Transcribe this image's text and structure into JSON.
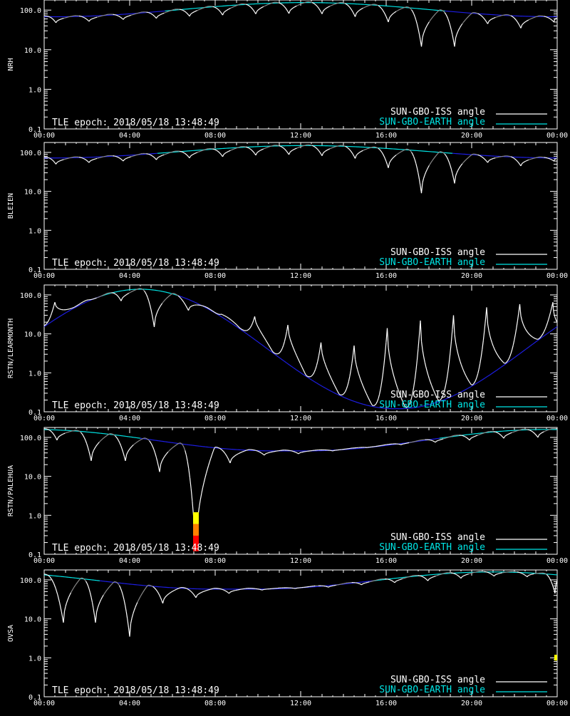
{
  "colors": {
    "background": "#000000",
    "axes": "#ffffff",
    "iss_day": "#ffffff",
    "iss_night": "#8c8c8c",
    "earth_sunlit": "#00e5e5",
    "earth_other": "#1e1ee6",
    "flare_high": "#ffff00",
    "flare_mid": "#ff8000",
    "flare_low": "#ff0000"
  },
  "epoch_text": "TLE epoch: 2018/05/18 13:48:49",
  "legend": {
    "iss": "SUN-GBO-ISS angle",
    "earth": "SUN-GBO-EARTH angle"
  },
  "chart_data": [
    {
      "type": "line",
      "ylabel": "NRH",
      "yscale": "log",
      "ylim": [
        0.1,
        180
      ],
      "xlim_hours": [
        0,
        24
      ],
      "x_tick_labels": [
        "00:00",
        "04:00",
        "08:00",
        "12:00",
        "16:00",
        "20:00",
        "00:00"
      ],
      "y_tick_labels": [
        "0.1",
        "1.0",
        "10.0",
        "100.0"
      ],
      "earth": {
        "min": 68,
        "min_hour": 0.5,
        "max": 155,
        "max_hour": 12.2
      },
      "iss_dips": [
        {
          "hour": 0.55,
          "value": 48
        },
        {
          "hour": 2.1,
          "value": 52
        },
        {
          "hour": 3.7,
          "value": 58
        },
        {
          "hour": 5.25,
          "value": 62
        },
        {
          "hour": 6.8,
          "value": 70
        },
        {
          "hour": 8.35,
          "value": 75
        },
        {
          "hour": 9.9,
          "value": 80
        },
        {
          "hour": 11.45,
          "value": 82
        },
        {
          "hour": 13.0,
          "value": 80
        },
        {
          "hour": 14.55,
          "value": 68
        },
        {
          "hour": 16.1,
          "value": 50
        },
        {
          "hour": 17.65,
          "value": 12
        },
        {
          "hour": 19.2,
          "value": 12
        },
        {
          "hour": 20.75,
          "value": 45
        },
        {
          "hour": 22.3,
          "value": 35
        },
        {
          "hour": 23.85,
          "value": 50
        }
      ],
      "flare_hour": null,
      "flare_top": null
    },
    {
      "type": "line",
      "ylabel": "BLEIEN",
      "yscale": "log",
      "ylim": [
        0.1,
        180
      ],
      "xlim_hours": [
        0,
        24
      ],
      "x_tick_labels": [
        "00:00",
        "04:00",
        "08:00",
        "12:00",
        "16:00",
        "20:00",
        "00:00"
      ],
      "y_tick_labels": [
        "0.1",
        "1.0",
        "10.0",
        "100.0"
      ],
      "earth": {
        "min": 72,
        "min_hour": 0.3,
        "max": 150,
        "max_hour": 12.2
      },
      "iss_dips": [
        {
          "hour": 0.55,
          "value": 50
        },
        {
          "hour": 2.1,
          "value": 55
        },
        {
          "hour": 3.7,
          "value": 60
        },
        {
          "hour": 5.25,
          "value": 65
        },
        {
          "hour": 6.8,
          "value": 72
        },
        {
          "hour": 8.35,
          "value": 78
        },
        {
          "hour": 9.9,
          "value": 85
        },
        {
          "hour": 11.45,
          "value": 88
        },
        {
          "hour": 13.0,
          "value": 82
        },
        {
          "hour": 14.55,
          "value": 70
        },
        {
          "hour": 16.1,
          "value": 40
        },
        {
          "hour": 17.65,
          "value": 9
        },
        {
          "hour": 19.2,
          "value": 16
        },
        {
          "hour": 20.75,
          "value": 55
        },
        {
          "hour": 22.3,
          "value": 45
        },
        {
          "hour": 23.85,
          "value": 60
        }
      ],
      "flare_hour": null,
      "flare_top": null
    },
    {
      "type": "line",
      "ylabel": "RSTN/LEARMONTH",
      "yscale": "log",
      "ylim": [
        0.1,
        180
      ],
      "xlim_hours": [
        0,
        24
      ],
      "x_tick_labels": [
        "00:00",
        "04:00",
        "08:00",
        "12:00",
        "16:00",
        "20:00",
        "00:00"
      ],
      "y_tick_labels": [
        "0.1",
        "1.0",
        "10.0",
        "100.0"
      ],
      "earth": {
        "min": 0.12,
        "min_hour": 16.4,
        "max": 140,
        "max_hour": 4.5
      },
      "iss_dips": [
        {
          "hour": 0.5,
          "value": 65
        },
        {
          "hour": 2.1,
          "value": 75
        },
        {
          "hour": 3.6,
          "value": 70
        },
        {
          "hour": 5.15,
          "value": 15
        },
        {
          "hour": 6.75,
          "value": 40
        },
        {
          "hour": 8.3,
          "value": 32
        },
        {
          "hour": 9.85,
          "value": 28
        },
        {
          "hour": 11.4,
          "value": 17
        },
        {
          "hour": 12.95,
          "value": 6
        },
        {
          "hour": 14.5,
          "value": 5
        },
        {
          "hour": 16.05,
          "value": 14
        },
        {
          "hour": 17.6,
          "value": 22
        },
        {
          "hour": 19.15,
          "value": 30
        },
        {
          "hour": 20.7,
          "value": 48
        },
        {
          "hour": 22.25,
          "value": 58
        },
        {
          "hour": 23.8,
          "value": 65
        }
      ],
      "flare_hour": null,
      "flare_top": null
    },
    {
      "type": "line",
      "ylabel": "RSTN/PALEHUA",
      "yscale": "log",
      "ylim": [
        0.1,
        180
      ],
      "xlim_hours": [
        0,
        24
      ],
      "x_tick_labels": [
        "00:00",
        "04:00",
        "08:00",
        "12:00",
        "16:00",
        "20:00",
        "00:00"
      ],
      "y_tick_labels": [
        "0.1",
        "1.0",
        "10.0",
        "100.0"
      ],
      "earth": {
        "min": 45,
        "min_hour": 10.8,
        "max": 160,
        "max_hour": 23.5
      },
      "iss_dips": [
        {
          "hour": 0.6,
          "value": 85
        },
        {
          "hour": 2.2,
          "value": 25
        },
        {
          "hour": 3.8,
          "value": 25
        },
        {
          "hour": 5.4,
          "value": 13
        },
        {
          "hour": 7.1,
          "value": 0.12
        },
        {
          "hour": 8.7,
          "value": 22
        },
        {
          "hour": 10.3,
          "value": 35
        },
        {
          "hour": 11.9,
          "value": 38
        },
        {
          "hour": 13.5,
          "value": 45
        },
        {
          "hour": 15.1,
          "value": 55
        },
        {
          "hour": 16.7,
          "value": 65
        },
        {
          "hour": 18.3,
          "value": 75
        },
        {
          "hour": 19.9,
          "value": 85
        },
        {
          "hour": 21.5,
          "value": 95
        },
        {
          "hour": 23.1,
          "value": 100
        }
      ],
      "flare_hour": 7.1,
      "flare_top": 1.2
    },
    {
      "type": "line",
      "ylabel": "OVSA",
      "yscale": "log",
      "ylim": [
        0.1,
        180
      ],
      "xlim_hours": [
        0,
        24
      ],
      "x_tick_labels": [
        "00:00",
        "04:00",
        "08:00",
        "12:00",
        "16:00",
        "20:00",
        "00:00"
      ],
      "y_tick_labels": [
        "0.1",
        "1.0",
        "10.0",
        "100.0"
      ],
      "earth": {
        "min": 58,
        "min_hour": 8.0,
        "max": 160,
        "max_hour": 21.0
      },
      "iss_dips": [
        {
          "hour": 0.9,
          "value": 8
        },
        {
          "hour": 2.4,
          "value": 8
        },
        {
          "hour": 4.0,
          "value": 3.5
        },
        {
          "hour": 5.55,
          "value": 25
        },
        {
          "hour": 7.1,
          "value": 35
        },
        {
          "hour": 8.65,
          "value": 45
        },
        {
          "hour": 10.2,
          "value": 55
        },
        {
          "hour": 11.75,
          "value": 60
        },
        {
          "hour": 13.3,
          "value": 65
        },
        {
          "hour": 14.85,
          "value": 75
        },
        {
          "hour": 16.4,
          "value": 85
        },
        {
          "hour": 17.95,
          "value": 95
        },
        {
          "hour": 19.5,
          "value": 110
        },
        {
          "hour": 21.05,
          "value": 125
        },
        {
          "hour": 22.6,
          "value": 120
        },
        {
          "hour": 23.9,
          "value": 45
        }
      ],
      "flare_hour": 23.95,
      "flare_top": 1.2
    }
  ]
}
